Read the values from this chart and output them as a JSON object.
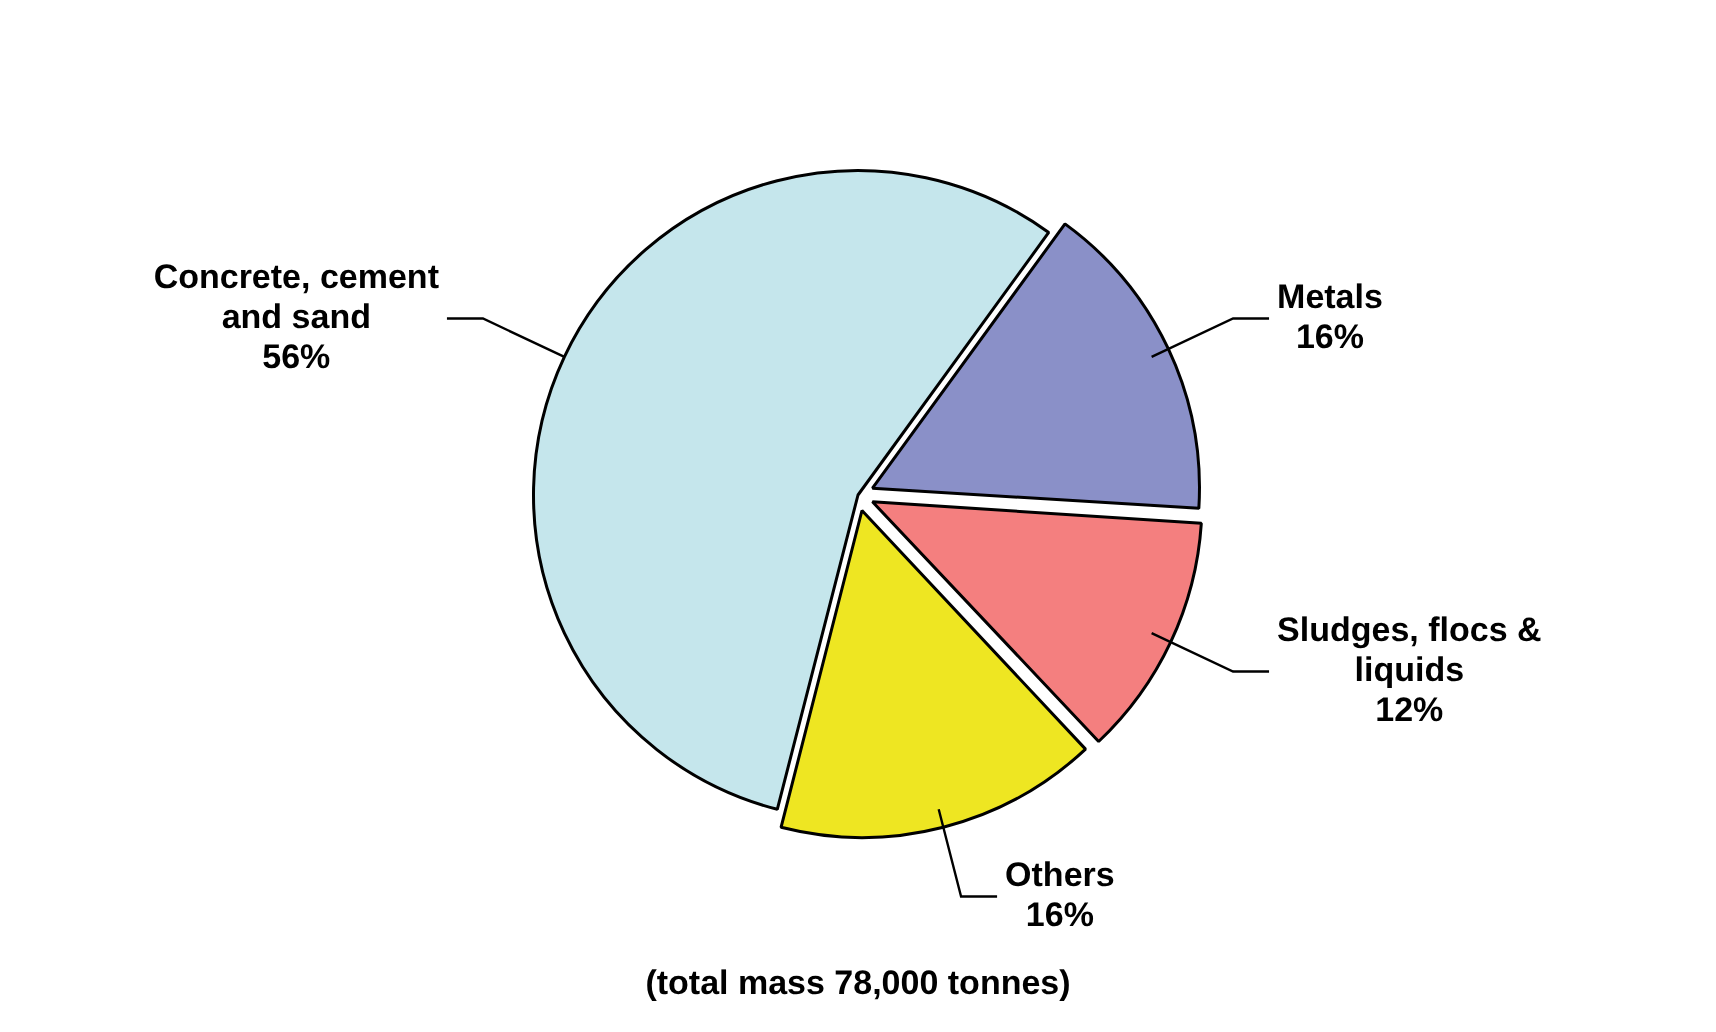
{
  "chart_data": {
    "type": "pie",
    "categories": [
      "Concrete, cement and sand",
      "Metals",
      "Sludges, flocs & liquids",
      "Others"
    ],
    "values": [
      56,
      16,
      12,
      16
    ],
    "colors": [
      "#c5e6ec",
      "#8a90c8",
      "#f47f7f",
      "#eee622"
    ],
    "value_labels": [
      "56%",
      "16%",
      "12%",
      "16%"
    ],
    "legend": false,
    "annotations": [
      "(total mass 78,000 tonnes)"
    ]
  }
}
